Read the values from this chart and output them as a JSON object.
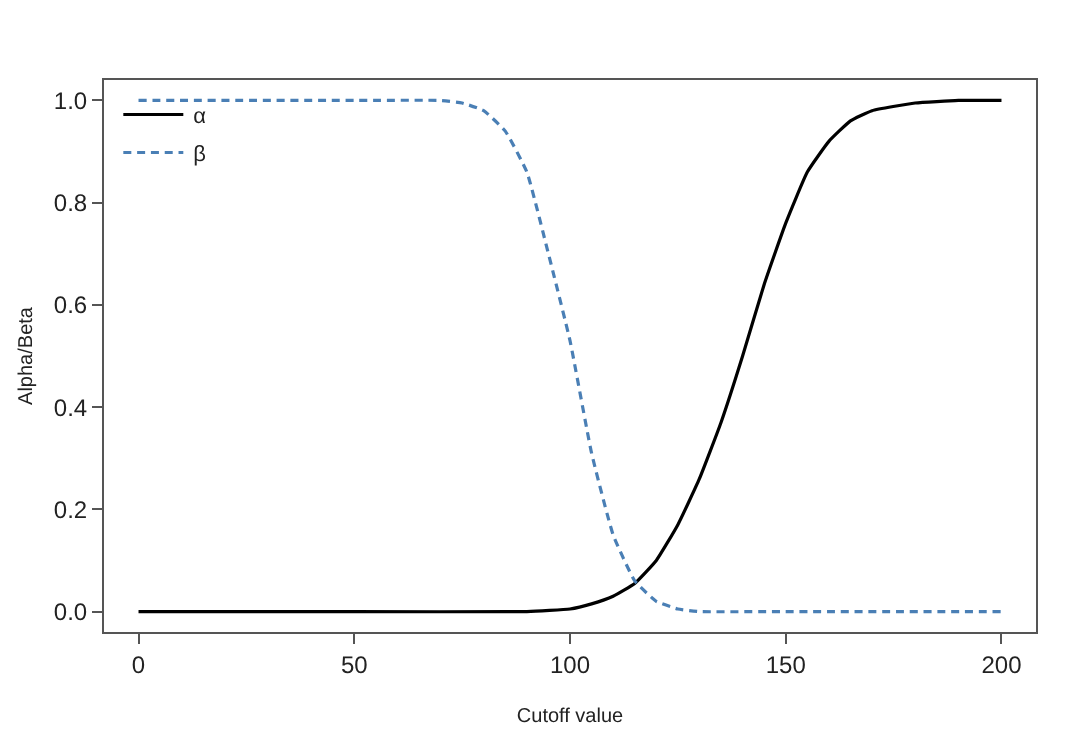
{
  "chart_data": {
    "type": "line",
    "xlabel": "Cutoff value",
    "ylabel": "Alpha/Beta",
    "xlim": [
      -8,
      208
    ],
    "ylim": [
      -0.04,
      1.04
    ],
    "xticks": [
      0,
      50,
      100,
      150,
      200
    ],
    "yticks": [
      {
        "value": 0,
        "label": "0.0"
      },
      {
        "value": 0.2,
        "label": "0.2"
      },
      {
        "value": 0.4,
        "label": "0.4"
      },
      {
        "value": 0.6,
        "label": "0.6"
      },
      {
        "value": 0.8,
        "label": "0.8"
      },
      {
        "value": 1,
        "label": "1.0"
      }
    ],
    "legend": "top left",
    "marker": "none",
    "series": [
      {
        "name": "α",
        "color": "#000000",
        "line_style": "solid",
        "x": [
          0,
          50,
          90,
          100,
          105,
          110,
          115,
          120,
          125,
          130,
          135,
          140,
          145,
          150,
          155,
          160,
          165,
          170,
          180,
          190,
          200
        ],
        "values": [
          0,
          0,
          0,
          0.005,
          0.015,
          0.03,
          0.055,
          0.1,
          0.17,
          0.26,
          0.37,
          0.5,
          0.64,
          0.76,
          0.86,
          0.92,
          0.96,
          0.98,
          0.995,
          1,
          1
        ]
      },
      {
        "name": "β",
        "color": "#4a7fb5",
        "line_style": "dashed",
        "x": [
          0,
          50,
          70,
          75,
          80,
          85,
          90,
          95,
          100,
          105,
          110,
          115,
          120,
          125,
          130,
          150,
          200
        ],
        "values": [
          1,
          1,
          1,
          0.995,
          0.98,
          0.94,
          0.86,
          0.7,
          0.53,
          0.31,
          0.15,
          0.06,
          0.02,
          0.005,
          0,
          0,
          0
        ]
      }
    ]
  }
}
